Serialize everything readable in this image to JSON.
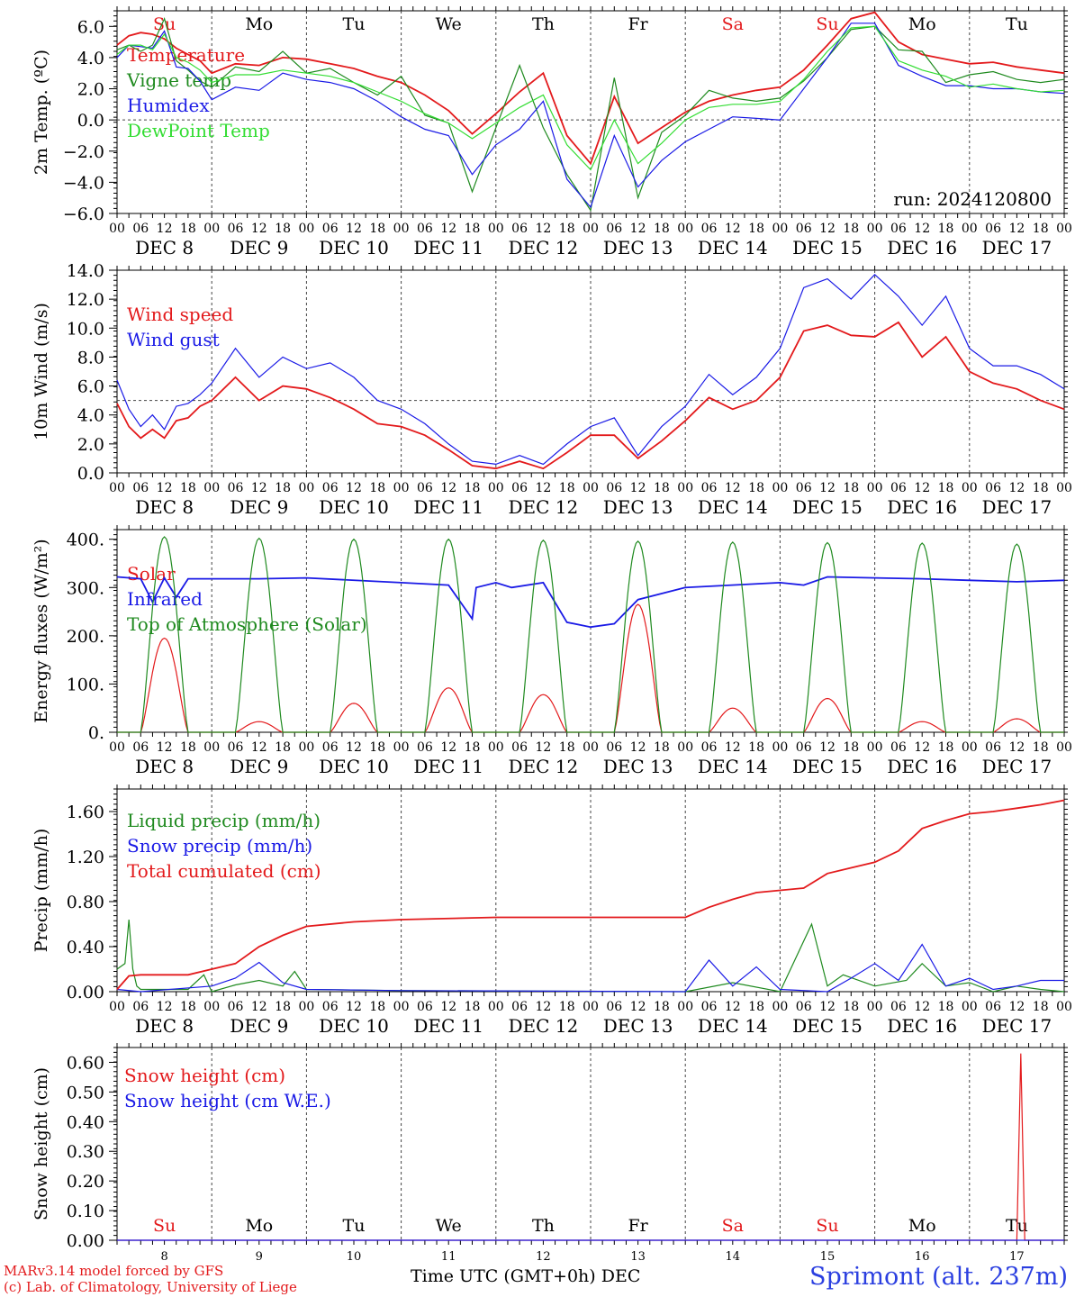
{
  "run_label": "run: 2024120800",
  "footer": {
    "model": "MARv3.14 model forced by GFS",
    "credit": "(c) Lab. of Climatology, University of Liege",
    "xaxis_title": "Time UTC (GMT+0h) DEC",
    "station": "Sprimont (alt. 237m)"
  },
  "colors": {
    "red": "#e31a1c",
    "green": "#1f8a1f",
    "blue": "#1a1ae6",
    "lightgreen": "#33dd33",
    "grid": "#555555"
  },
  "chart_data": [
    {
      "type": "line",
      "ylabel": "2m Temp. (ºC)",
      "ylim": [
        -6,
        7
      ],
      "yticks": [
        "−6.0",
        "−4.0",
        "−2.0",
        "0.0",
        "2.0",
        "4.0",
        "6.0"
      ],
      "ytick_values": [
        -6,
        -4,
        -2,
        0,
        2,
        4,
        6
      ],
      "reference_line": 0,
      "day_names": [
        "Su",
        "Mo",
        "Tu",
        "We",
        "Th",
        "Fr",
        "Sa",
        "Su",
        "Mo",
        "Tu"
      ],
      "day_name_colors": [
        "red",
        "black",
        "black",
        "black",
        "black",
        "black",
        "red",
        "red",
        "black",
        "black"
      ],
      "hour_ticks": [
        "00",
        "06",
        "12",
        "18"
      ],
      "dates": [
        "DEC  8",
        "DEC  9",
        "DEC 10",
        "DEC 11",
        "DEC 12",
        "DEC 13",
        "DEC 14",
        "DEC 15",
        "DEC 16",
        "DEC 17"
      ],
      "x_unit": "hours since Dec 8 00 UTC",
      "series": [
        {
          "name": "Temperature",
          "color": "red",
          "x": [
            0,
            3,
            6,
            9,
            12,
            15,
            18,
            21,
            24,
            30,
            36,
            42,
            48,
            54,
            60,
            66,
            72,
            78,
            84,
            90,
            96,
            102,
            108,
            114,
            120,
            126,
            132,
            138,
            144,
            150,
            156,
            162,
            168,
            174,
            180,
            186,
            192,
            198,
            204,
            210,
            216,
            222,
            228,
            234,
            240
          ],
          "values": [
            4.8,
            5.4,
            5.6,
            5.5,
            5.2,
            4.6,
            4.2,
            3.8,
            3.0,
            3.6,
            3.5,
            4.0,
            3.9,
            3.6,
            3.3,
            2.8,
            2.4,
            1.6,
            0.6,
            -0.9,
            0.4,
            1.8,
            3.0,
            -1.0,
            -2.8,
            1.5,
            -1.5,
            -0.5,
            0.5,
            1.2,
            1.6,
            1.9,
            2.1,
            3.2,
            4.8,
            6.5,
            6.9,
            5.0,
            4.2,
            3.9,
            3.6,
            3.7,
            3.4,
            3.2,
            3.0
          ]
        },
        {
          "name": "Vigne temp",
          "color": "green",
          "x": [
            0,
            3,
            6,
            9,
            12,
            15,
            18,
            21,
            24,
            30,
            36,
            42,
            48,
            54,
            60,
            66,
            72,
            78,
            84,
            90,
            96,
            102,
            108,
            114,
            120,
            126,
            132,
            138,
            144,
            150,
            156,
            162,
            168,
            174,
            180,
            186,
            192,
            198,
            204,
            210,
            216,
            222,
            228,
            234,
            240
          ],
          "values": [
            4.5,
            4.8,
            4.4,
            4.8,
            6.5,
            3.8,
            3.2,
            2.5,
            2.1,
            3.4,
            3.1,
            4.4,
            3.0,
            3.3,
            2.4,
            1.6,
            2.8,
            0.3,
            -0.2,
            -4.6,
            -0.5,
            3.5,
            -0.5,
            -3.5,
            -5.8,
            2.7,
            -5.0,
            -0.8,
            0.3,
            1.9,
            1.4,
            1.2,
            1.4,
            2.5,
            4.0,
            5.8,
            6.0,
            4.5,
            4.4,
            2.4,
            2.9,
            3.1,
            2.6,
            2.4,
            2.6
          ]
        },
        {
          "name": "Humidex",
          "color": "blue",
          "x": [
            0,
            3,
            6,
            9,
            12,
            15,
            18,
            21,
            24,
            30,
            36,
            42,
            48,
            54,
            60,
            66,
            72,
            78,
            84,
            90,
            96,
            102,
            108,
            114,
            120,
            126,
            132,
            138,
            144,
            150,
            156,
            162,
            168,
            174,
            180,
            186,
            192,
            198,
            204,
            210,
            216,
            222,
            228,
            234,
            240
          ],
          "values": [
            4.0,
            4.8,
            4.7,
            4.6,
            5.7,
            3.4,
            3.3,
            2.5,
            1.3,
            2.1,
            1.9,
            3.0,
            2.6,
            2.4,
            2.0,
            1.2,
            0.2,
            -0.6,
            -1.0,
            -3.5,
            -1.6,
            -0.6,
            1.2,
            -3.8,
            -5.6,
            -1.0,
            -4.3,
            -2.6,
            -1.4,
            -0.6,
            0.2,
            0.1,
            0.0,
            2.0,
            4.0,
            6.2,
            6.2,
            3.5,
            2.8,
            2.2,
            2.2,
            2.0,
            2.0,
            1.8,
            1.7
          ]
        },
        {
          "name": "DewPoint Temp",
          "color": "lightgreen",
          "x": [
            0,
            3,
            6,
            9,
            12,
            15,
            18,
            21,
            24,
            30,
            36,
            42,
            48,
            54,
            60,
            66,
            72,
            78,
            84,
            90,
            96,
            102,
            108,
            114,
            120,
            126,
            132,
            138,
            144,
            150,
            156,
            162,
            168,
            174,
            180,
            186,
            192,
            198,
            204,
            210,
            216,
            222,
            228,
            234,
            240
          ],
          "values": [
            4.2,
            4.8,
            4.8,
            4.5,
            5.5,
            4.0,
            3.7,
            3.2,
            2.4,
            2.9,
            2.9,
            3.2,
            3.0,
            2.8,
            2.4,
            1.8,
            1.2,
            0.4,
            -0.2,
            -1.2,
            -0.2,
            0.8,
            1.6,
            -1.6,
            -3.2,
            0.0,
            -2.8,
            -1.5,
            0.0,
            0.8,
            1.0,
            1.0,
            1.2,
            2.6,
            4.4,
            5.9,
            6.0,
            3.8,
            3.2,
            2.8,
            2.1,
            2.3,
            2.0,
            1.8,
            1.9
          ]
        }
      ]
    },
    {
      "type": "line",
      "ylabel": "10m Wind (m/s)",
      "ylim": [
        0,
        14
      ],
      "yticks": [
        "0.0",
        "2.0",
        "4.0",
        "6.0",
        "8.0",
        "10.0",
        "12.0",
        "14.0"
      ],
      "ytick_values": [
        0,
        2,
        4,
        6,
        8,
        10,
        12,
        14
      ],
      "reference_line": 5,
      "hour_ticks": [
        "00",
        "06",
        "12",
        "18"
      ],
      "dates": [
        "DEC  8",
        "DEC  9",
        "DEC 10",
        "DEC 11",
        "DEC 12",
        "DEC 13",
        "DEC 14",
        "DEC 15",
        "DEC 16",
        "DEC 17"
      ],
      "series": [
        {
          "name": "Wind speed",
          "color": "red",
          "x": [
            0,
            3,
            6,
            9,
            12,
            15,
            18,
            21,
            24,
            30,
            36,
            42,
            48,
            54,
            60,
            66,
            72,
            78,
            84,
            90,
            96,
            102,
            108,
            114,
            120,
            126,
            132,
            138,
            144,
            150,
            156,
            162,
            168,
            174,
            180,
            186,
            192,
            198,
            204,
            210,
            216,
            222,
            228,
            234,
            240
          ],
          "values": [
            4.8,
            3.2,
            2.4,
            3.0,
            2.4,
            3.6,
            3.8,
            4.6,
            5.0,
            6.6,
            5.0,
            6.0,
            5.8,
            5.2,
            4.4,
            3.4,
            3.2,
            2.6,
            1.6,
            0.5,
            0.3,
            0.8,
            0.3,
            1.4,
            2.6,
            2.6,
            1.0,
            2.2,
            3.6,
            5.2,
            4.4,
            5.0,
            6.6,
            9.8,
            10.2,
            9.5,
            9.4,
            10.4,
            8.0,
            9.4,
            7.0,
            6.2,
            5.8,
            5.0,
            4.4
          ]
        },
        {
          "name": "Wind gust",
          "color": "blue",
          "x": [
            0,
            3,
            6,
            9,
            12,
            15,
            18,
            21,
            24,
            30,
            36,
            42,
            48,
            54,
            60,
            66,
            72,
            78,
            84,
            90,
            96,
            102,
            108,
            114,
            120,
            126,
            132,
            138,
            144,
            150,
            156,
            162,
            168,
            174,
            180,
            186,
            192,
            198,
            204,
            210,
            216,
            222,
            228,
            234,
            240
          ],
          "values": [
            6.4,
            4.4,
            3.2,
            4.0,
            3.0,
            4.6,
            4.8,
            5.4,
            6.2,
            8.6,
            6.6,
            8.0,
            7.2,
            7.6,
            6.6,
            5.0,
            4.4,
            3.4,
            2.0,
            0.8,
            0.6,
            1.2,
            0.6,
            2.0,
            3.2,
            3.8,
            1.2,
            3.2,
            4.6,
            6.8,
            5.4,
            6.6,
            8.6,
            12.8,
            13.4,
            12.0,
            13.7,
            12.2,
            10.2,
            12.2,
            8.6,
            7.4,
            7.4,
            6.8,
            5.8
          ]
        }
      ]
    },
    {
      "type": "line",
      "ylabel": "Energy fluxes (W/m²)",
      "ylim": [
        0,
        420
      ],
      "yticks": [
        "0.",
        "100.",
        "200.",
        "300.",
        "400."
      ],
      "ytick_values": [
        0,
        100,
        200,
        300,
        400
      ],
      "hour_ticks": [
        "00",
        "06",
        "12",
        "18"
      ],
      "dates": [
        "DEC  8",
        "DEC  9",
        "DEC 10",
        "DEC 11",
        "DEC 12",
        "DEC 13",
        "DEC 14",
        "DEC 15",
        "DEC 16",
        "DEC 17"
      ],
      "series": [
        {
          "name": "Solar",
          "color": "red",
          "peaks": [
            195,
            22,
            60,
            92,
            78,
            265,
            50,
            70,
            22,
            28
          ]
        },
        {
          "name": "Infrared",
          "color": "blue",
          "x": [
            0,
            6,
            9,
            12,
            15,
            18,
            24,
            36,
            48,
            72,
            84,
            90,
            91,
            96,
            100,
            108,
            114,
            120,
            126,
            132,
            144,
            168,
            174,
            180,
            192,
            204,
            216,
            228,
            240
          ],
          "values": [
            322,
            318,
            270,
            320,
            280,
            318,
            318,
            318,
            320,
            310,
            305,
            235,
            300,
            310,
            300,
            310,
            228,
            218,
            225,
            275,
            300,
            310,
            305,
            322,
            320,
            318,
            315,
            312,
            315
          ]
        },
        {
          "name": "Top of Atmosphere (Solar)",
          "color": "green",
          "peaks": [
            405,
            402,
            400,
            400,
            398,
            396,
            394,
            393,
            392,
            390
          ]
        }
      ]
    },
    {
      "type": "line",
      "ylabel": "Precip (mm/h)",
      "ylim": [
        0,
        1.8
      ],
      "yticks": [
        "0.00",
        "0.40",
        "0.80",
        "1.20",
        "1.60"
      ],
      "ytick_values": [
        0,
        0.4,
        0.8,
        1.2,
        1.6
      ],
      "hour_ticks": [
        "00",
        "06",
        "12",
        "18"
      ],
      "dates": [
        "DEC  8",
        "DEC  9",
        "DEC 10",
        "DEC 11",
        "DEC 12",
        "DEC 13",
        "DEC 14",
        "DEC 15",
        "DEC 16",
        "DEC 17"
      ],
      "series": [
        {
          "name": "Liquid precip (mm/h)",
          "color": "green",
          "x": [
            0,
            2,
            3,
            4,
            5,
            6,
            18,
            22,
            24,
            30,
            36,
            42,
            45,
            48,
            72,
            144,
            156,
            168,
            176,
            180,
            184,
            192,
            200,
            204,
            210,
            216,
            222,
            228,
            234,
            240
          ],
          "values": [
            0.2,
            0.25,
            0.64,
            0.2,
            0.05,
            0.02,
            0.02,
            0.15,
            0.0,
            0.06,
            0.1,
            0.05,
            0.18,
            0.02,
            0.01,
            0.0,
            0.08,
            0.0,
            0.6,
            0.05,
            0.15,
            0.05,
            0.1,
            0.25,
            0.05,
            0.08,
            0.0,
            0.05,
            0.02,
            0.0
          ]
        },
        {
          "name": "Snow precip (mm/h)",
          "color": "blue",
          "x": [
            0,
            6,
            24,
            30,
            36,
            42,
            48,
            72,
            144,
            150,
            156,
            162,
            168,
            180,
            186,
            192,
            198,
            204,
            210,
            216,
            222,
            228,
            234,
            240
          ],
          "values": [
            0.02,
            0.0,
            0.05,
            0.12,
            0.26,
            0.08,
            0.02,
            0.01,
            0.0,
            0.28,
            0.05,
            0.22,
            0.02,
            0.0,
            0.12,
            0.25,
            0.1,
            0.42,
            0.05,
            0.12,
            0.02,
            0.05,
            0.1,
            0.1
          ]
        },
        {
          "name": "Total cumulated (cm)",
          "color": "red",
          "x": [
            0,
            3,
            6,
            18,
            24,
            30,
            36,
            42,
            48,
            60,
            72,
            96,
            120,
            144,
            150,
            156,
            162,
            168,
            174,
            180,
            186,
            192,
            198,
            204,
            210,
            216,
            222,
            228,
            234,
            240
          ],
          "values": [
            0.02,
            0.14,
            0.15,
            0.15,
            0.2,
            0.25,
            0.4,
            0.5,
            0.58,
            0.62,
            0.64,
            0.66,
            0.66,
            0.66,
            0.75,
            0.82,
            0.88,
            0.9,
            0.92,
            1.05,
            1.1,
            1.15,
            1.25,
            1.45,
            1.52,
            1.58,
            1.6,
            1.63,
            1.66,
            1.7
          ]
        }
      ]
    },
    {
      "type": "line",
      "ylabel": "Snow height (cm)",
      "ylim": [
        0,
        0.65
      ],
      "yticks": [
        "0.00",
        "0.10",
        "0.20",
        "0.30",
        "0.40",
        "0.50",
        "0.60"
      ],
      "ytick_values": [
        0,
        0.1,
        0.2,
        0.3,
        0.4,
        0.5,
        0.6
      ],
      "day_names": [
        "Su",
        "Mo",
        "Tu",
        "We",
        "Th",
        "Fr",
        "Sa",
        "Su",
        "Mo",
        "Tu"
      ],
      "day_name_colors": [
        "red",
        "black",
        "black",
        "black",
        "black",
        "black",
        "red",
        "red",
        "black",
        "black"
      ],
      "day_numbers": [
        "8",
        "9",
        "10",
        "11",
        "12",
        "13",
        "14",
        "15",
        "16",
        "17"
      ],
      "series": [
        {
          "name": "Snow height (cm)",
          "color": "red",
          "x": [
            0,
            228,
            229,
            230,
            240
          ],
          "values": [
            0,
            0,
            0.63,
            0,
            0
          ]
        },
        {
          "name": "Snow height (cm W.E.)",
          "color": "blue",
          "x": [
            0,
            240
          ],
          "values": [
            0,
            0
          ]
        }
      ]
    }
  ]
}
